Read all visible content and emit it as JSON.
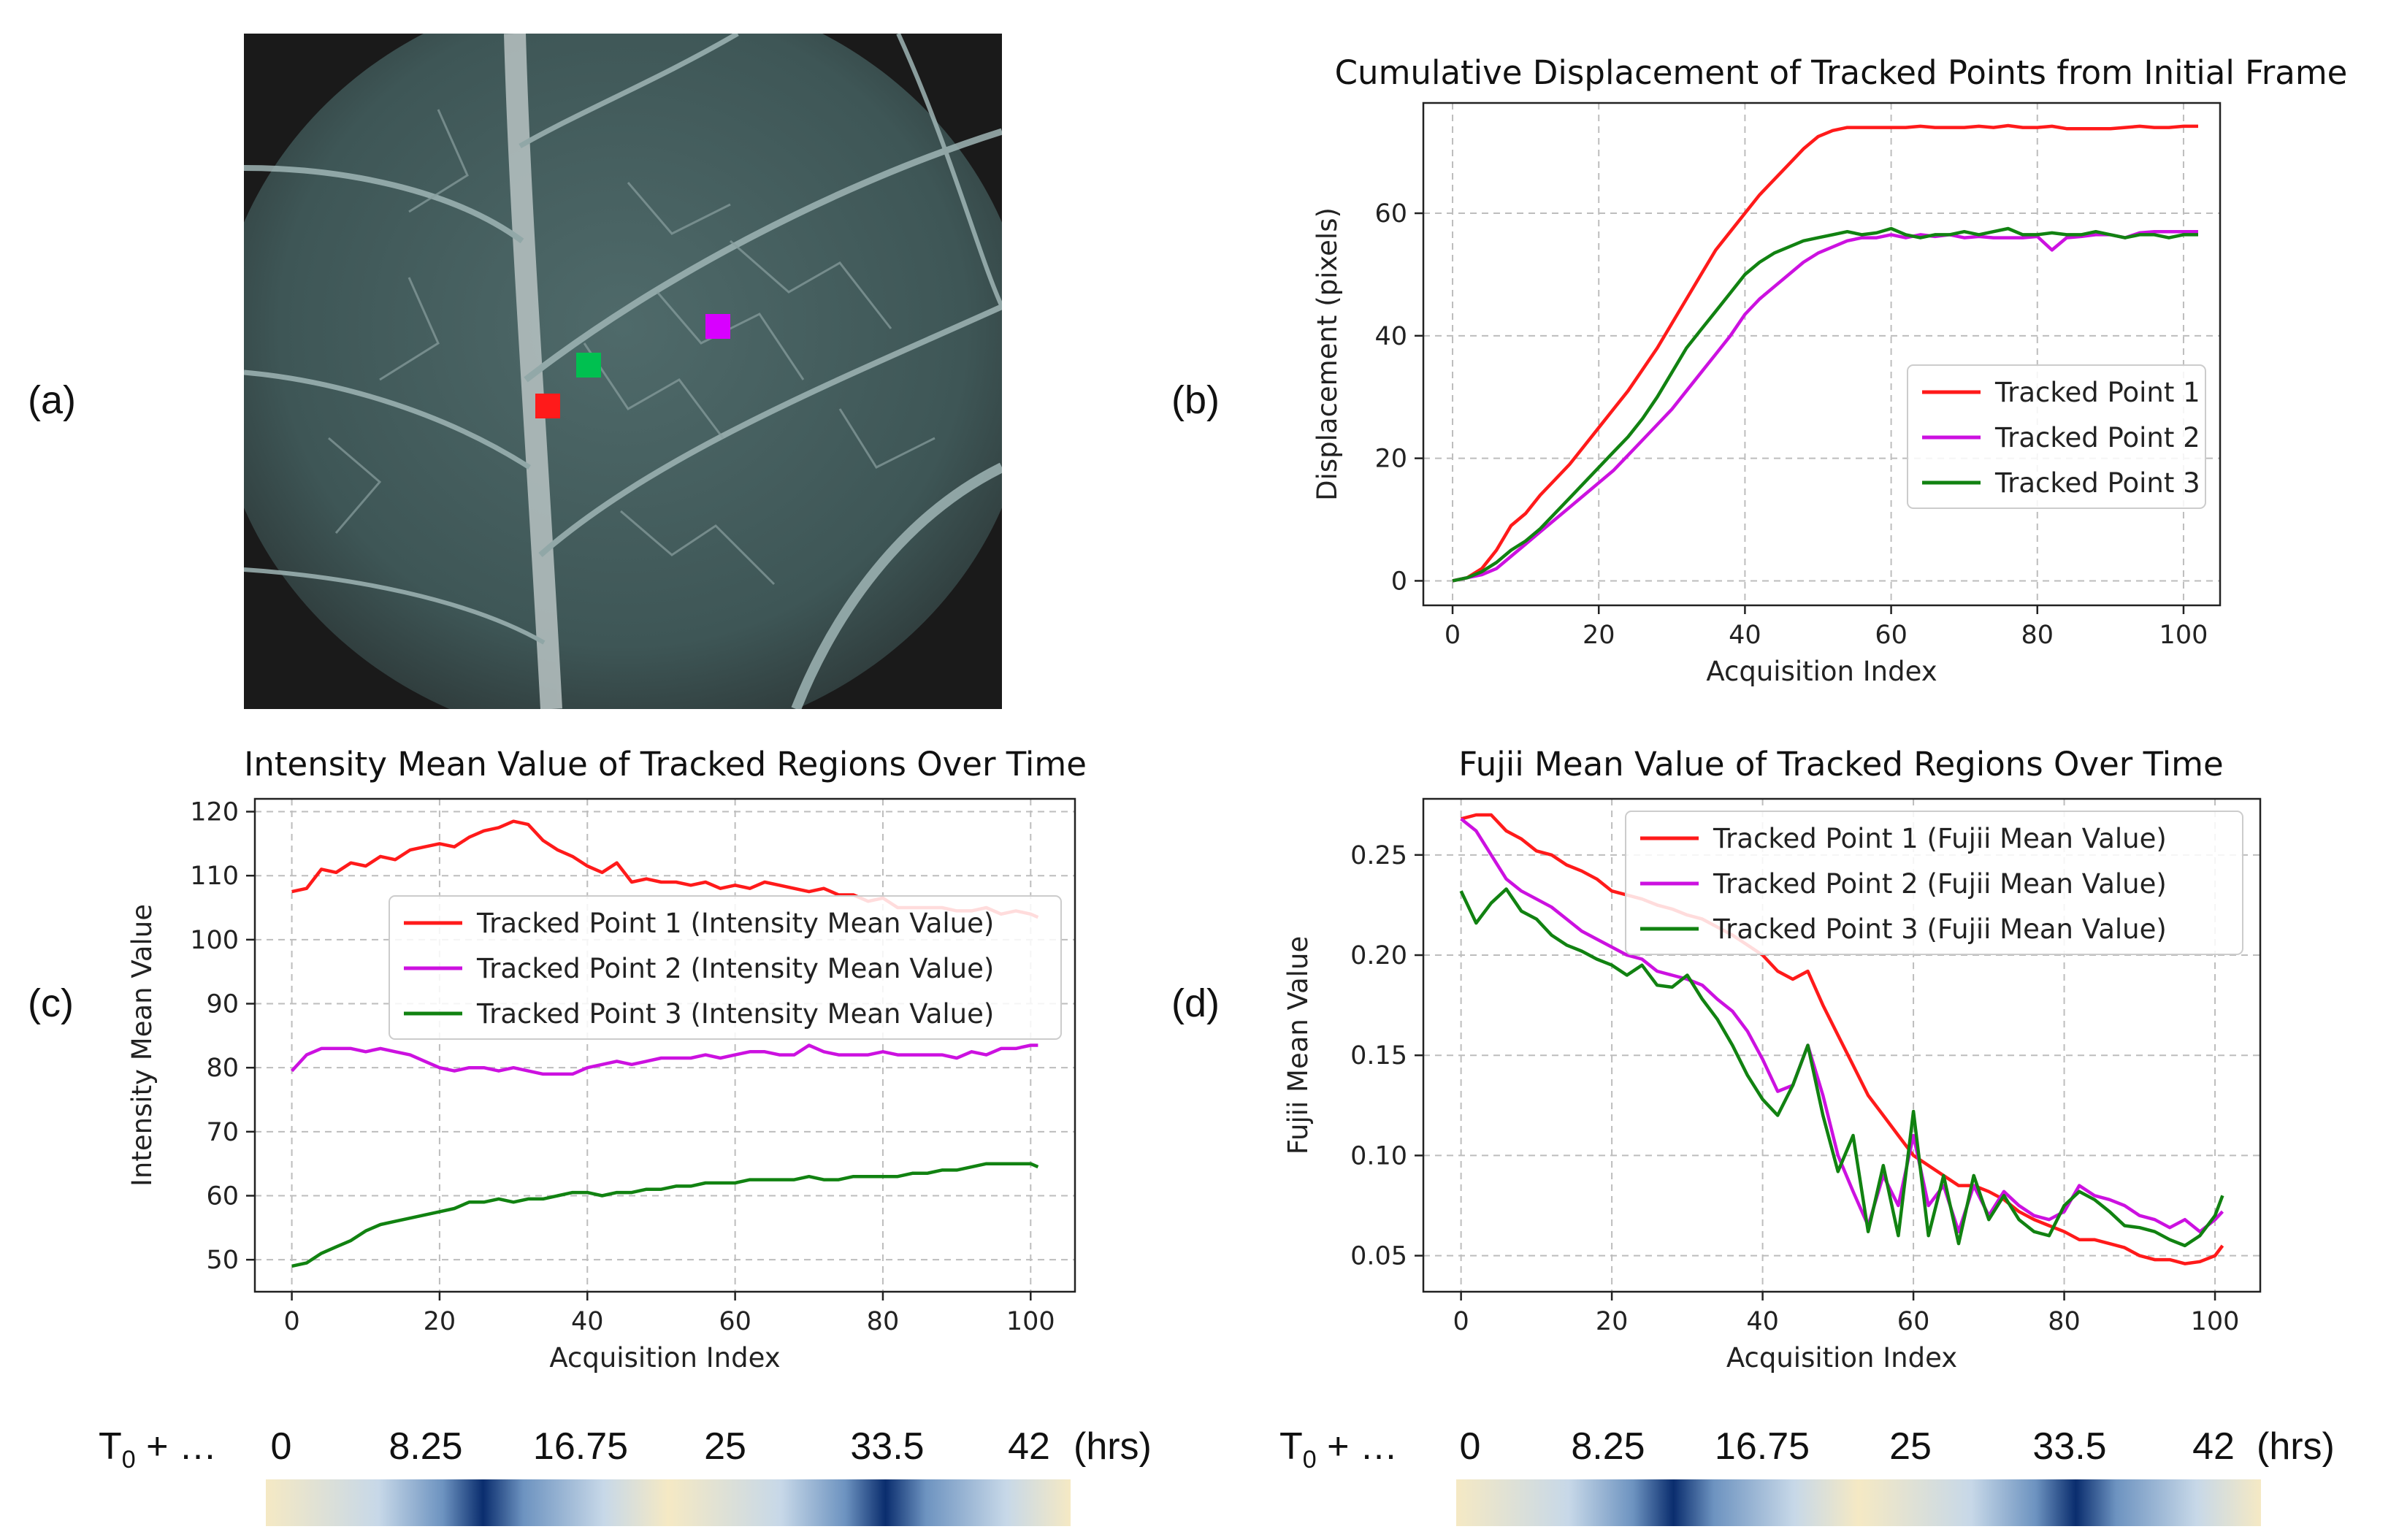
{
  "panel_labels": {
    "a": "(a)",
    "b": "(b)",
    "c": "(c)",
    "d": "(d)"
  },
  "colors": {
    "point1": "#ff1a1a",
    "point2": "#cc11e0",
    "point3": "#118211",
    "marker3": "#00c050"
  },
  "leaf_image": {
    "description_icon": "leaf-photo",
    "markers": [
      "red",
      "green",
      "magenta"
    ]
  },
  "chart_data": [
    {
      "id": "b",
      "type": "line",
      "title": "Cumulative Displacement of Tracked Points from Initial Frame",
      "xlabel": "Acquisition Index",
      "ylabel": "Displacement (pixels)",
      "xlim": [
        -4,
        105
      ],
      "ylim": [
        -4,
        78
      ],
      "xticks": [
        0,
        20,
        40,
        60,
        80,
        100
      ],
      "yticks": [
        0,
        20,
        40,
        60
      ],
      "legend_position": "center-right",
      "series": [
        {
          "name": "Tracked Point 1",
          "color": "#ff1a1a",
          "x": [
            0,
            2,
            4,
            6,
            8,
            10,
            12,
            14,
            16,
            18,
            20,
            22,
            24,
            26,
            28,
            30,
            32,
            34,
            36,
            38,
            40,
            42,
            44,
            46,
            48,
            50,
            52,
            54,
            56,
            58,
            60,
            62,
            64,
            66,
            68,
            70,
            72,
            74,
            76,
            78,
            80,
            82,
            84,
            86,
            88,
            90,
            92,
            94,
            96,
            98,
            100,
            102
          ],
          "y": [
            0,
            0.5,
            2,
            5,
            9,
            11,
            14,
            16.5,
            19,
            22,
            25,
            28,
            31,
            34.5,
            38,
            42,
            46,
            50,
            54,
            57,
            60,
            63,
            65.5,
            68,
            70.5,
            72.5,
            73.5,
            74,
            74,
            74,
            74,
            74,
            74.2,
            74,
            74,
            74,
            74.2,
            74,
            74.3,
            74,
            74,
            74.2,
            73.8,
            73.8,
            73.8,
            73.8,
            74,
            74.2,
            74,
            74,
            74.2,
            74.2
          ]
        },
        {
          "name": "Tracked Point 2",
          "color": "#cc11e0",
          "x": [
            0,
            2,
            4,
            6,
            8,
            10,
            12,
            14,
            16,
            18,
            20,
            22,
            24,
            26,
            28,
            30,
            32,
            34,
            36,
            38,
            40,
            42,
            44,
            46,
            48,
            50,
            52,
            54,
            56,
            58,
            60,
            62,
            64,
            66,
            68,
            70,
            72,
            74,
            76,
            78,
            80,
            82,
            84,
            86,
            88,
            90,
            92,
            94,
            96,
            98,
            100,
            102
          ],
          "y": [
            0,
            0.5,
            1,
            2,
            4,
            6,
            8,
            10,
            12,
            14,
            16,
            18,
            20.5,
            23,
            25.5,
            28,
            31,
            34,
            37,
            40,
            43.5,
            46,
            48,
            50,
            52,
            53.5,
            54.5,
            55.5,
            56,
            56,
            56.5,
            56,
            56.5,
            56.2,
            56.5,
            56,
            56.2,
            56,
            56,
            56,
            56.2,
            54,
            56,
            56.2,
            56.5,
            56.5,
            56,
            56.8,
            57,
            57,
            57,
            57
          ]
        },
        {
          "name": "Tracked Point 3",
          "color": "#118211",
          "x": [
            0,
            2,
            4,
            6,
            8,
            10,
            12,
            14,
            16,
            18,
            20,
            22,
            24,
            26,
            28,
            30,
            32,
            34,
            36,
            38,
            40,
            42,
            44,
            46,
            48,
            50,
            52,
            54,
            56,
            58,
            60,
            62,
            64,
            66,
            68,
            70,
            72,
            74,
            76,
            78,
            80,
            82,
            84,
            86,
            88,
            90,
            92,
            94,
            96,
            98,
            100,
            102
          ],
          "y": [
            0,
            0.5,
            1.5,
            3,
            5,
            6.5,
            8.5,
            11,
            13.5,
            16,
            18.5,
            21,
            23.5,
            26.5,
            30,
            34,
            38,
            41,
            44,
            47,
            50,
            52,
            53.5,
            54.5,
            55.5,
            56,
            56.5,
            57,
            56.5,
            56.8,
            57.5,
            56.5,
            56,
            56.5,
            56.5,
            57,
            56.5,
            57,
            57.5,
            56.5,
            56.5,
            56.8,
            56.5,
            56.5,
            57,
            56.5,
            56,
            56.5,
            56.5,
            56,
            56.5,
            56.5
          ]
        }
      ]
    },
    {
      "id": "c",
      "type": "line",
      "title": "Intensity Mean Value of Tracked Regions Over Time",
      "xlabel": "Acquisition Index",
      "ylabel": "Intensity Mean Value",
      "xlim": [
        -5,
        106
      ],
      "ylim": [
        45,
        122
      ],
      "xticks": [
        0,
        20,
        40,
        60,
        80,
        100
      ],
      "yticks": [
        50,
        60,
        70,
        80,
        90,
        100,
        110,
        120
      ],
      "legend_position": "center-right",
      "series": [
        {
          "name": "Tracked Point 1 (Intensity Mean Value)",
          "color": "#ff1a1a",
          "x": [
            0,
            2,
            4,
            6,
            8,
            10,
            12,
            14,
            16,
            18,
            20,
            22,
            24,
            26,
            28,
            30,
            32,
            34,
            36,
            38,
            40,
            42,
            44,
            46,
            48,
            50,
            52,
            54,
            56,
            58,
            60,
            62,
            64,
            66,
            68,
            70,
            72,
            74,
            76,
            78,
            80,
            82,
            84,
            86,
            88,
            90,
            92,
            94,
            96,
            98,
            100,
            101
          ],
          "y": [
            107.5,
            108,
            111,
            110.5,
            112,
            111.5,
            113,
            112.5,
            114,
            114.5,
            115,
            114.5,
            116,
            117,
            117.5,
            118.5,
            118,
            115.5,
            114,
            113,
            111.5,
            110.5,
            112,
            109,
            109.5,
            109,
            109,
            108.5,
            109,
            108,
            108.5,
            108,
            109,
            108.5,
            108,
            107.5,
            108,
            107,
            107,
            106,
            106.5,
            105,
            105,
            105,
            105,
            104.5,
            104.5,
            105,
            104,
            104.5,
            104,
            103.5
          ]
        },
        {
          "name": "Tracked Point 2 (Intensity Mean Value)",
          "color": "#cc11e0",
          "x": [
            0,
            2,
            4,
            6,
            8,
            10,
            12,
            14,
            16,
            18,
            20,
            22,
            24,
            26,
            28,
            30,
            32,
            34,
            36,
            38,
            40,
            42,
            44,
            46,
            48,
            50,
            52,
            54,
            56,
            58,
            60,
            62,
            64,
            66,
            68,
            70,
            72,
            74,
            76,
            78,
            80,
            82,
            84,
            86,
            88,
            90,
            92,
            94,
            96,
            98,
            100,
            101
          ],
          "y": [
            79.5,
            82,
            83,
            83,
            83,
            82.5,
            83,
            82.5,
            82,
            81,
            80,
            79.5,
            80,
            80,
            79.5,
            80,
            79.5,
            79,
            79,
            79,
            80,
            80.5,
            81,
            80.5,
            81,
            81.5,
            81.5,
            81.5,
            82,
            81.5,
            82,
            82.5,
            82.5,
            82,
            82,
            83.5,
            82.5,
            82,
            82,
            82,
            82.5,
            82,
            82,
            82,
            82,
            81.5,
            82.5,
            82,
            83,
            83,
            83.5,
            83.5
          ]
        },
        {
          "name": "Tracked Point 3 (Intensity Mean Value)",
          "color": "#118211",
          "x": [
            0,
            2,
            4,
            6,
            8,
            10,
            12,
            14,
            16,
            18,
            20,
            22,
            24,
            26,
            28,
            30,
            32,
            34,
            36,
            38,
            40,
            42,
            44,
            46,
            48,
            50,
            52,
            54,
            56,
            58,
            60,
            62,
            64,
            66,
            68,
            70,
            72,
            74,
            76,
            78,
            80,
            82,
            84,
            86,
            88,
            90,
            92,
            94,
            96,
            98,
            100,
            101
          ],
          "y": [
            49,
            49.5,
            51,
            52,
            53,
            54.5,
            55.5,
            56,
            56.5,
            57,
            57.5,
            58,
            59,
            59,
            59.5,
            59,
            59.5,
            59.5,
            60,
            60.5,
            60.5,
            60,
            60.5,
            60.5,
            61,
            61,
            61.5,
            61.5,
            62,
            62,
            62,
            62.5,
            62.5,
            62.5,
            62.5,
            63,
            62.5,
            62.5,
            63,
            63,
            63,
            63,
            63.5,
            63.5,
            64,
            64,
            64.5,
            65,
            65,
            65,
            65,
            64.5
          ]
        }
      ]
    },
    {
      "id": "d",
      "type": "line",
      "title": "Fujii Mean Value of Tracked Regions Over Time",
      "xlabel": "Acquisition Index",
      "ylabel": "Fujii Mean Value",
      "xlim": [
        -5,
        106
      ],
      "ylim": [
        0.032,
        0.278
      ],
      "xticks": [
        0,
        20,
        40,
        60,
        80,
        100
      ],
      "yticks": [
        0.05,
        0.1,
        0.15,
        0.2,
        0.25
      ],
      "legend_position": "top-right",
      "series": [
        {
          "name": "Tracked Point 1 (Fujii Mean Value)",
          "color": "#ff1a1a",
          "x": [
            0,
            2,
            4,
            6,
            8,
            10,
            12,
            14,
            16,
            18,
            20,
            22,
            24,
            26,
            28,
            30,
            32,
            34,
            36,
            38,
            40,
            42,
            44,
            46,
            48,
            50,
            52,
            54,
            56,
            58,
            60,
            62,
            64,
            66,
            68,
            70,
            72,
            74,
            76,
            78,
            80,
            82,
            84,
            86,
            88,
            90,
            92,
            94,
            96,
            98,
            100,
            101
          ],
          "y": [
            0.268,
            0.27,
            0.27,
            0.262,
            0.258,
            0.252,
            0.25,
            0.245,
            0.242,
            0.238,
            0.232,
            0.23,
            0.228,
            0.225,
            0.223,
            0.22,
            0.218,
            0.214,
            0.21,
            0.205,
            0.2,
            0.192,
            0.188,
            0.192,
            0.175,
            0.16,
            0.145,
            0.13,
            0.12,
            0.11,
            0.1,
            0.095,
            0.09,
            0.085,
            0.085,
            0.082,
            0.078,
            0.072,
            0.068,
            0.065,
            0.062,
            0.058,
            0.058,
            0.056,
            0.054,
            0.05,
            0.048,
            0.048,
            0.046,
            0.047,
            0.05,
            0.055
          ]
        },
        {
          "name": "Tracked Point 2 (Fujii Mean Value)",
          "color": "#cc11e0",
          "x": [
            0,
            2,
            4,
            6,
            8,
            10,
            12,
            14,
            16,
            18,
            20,
            22,
            24,
            26,
            28,
            30,
            32,
            34,
            36,
            38,
            40,
            42,
            44,
            46,
            48,
            50,
            52,
            54,
            56,
            58,
            60,
            62,
            64,
            66,
            68,
            70,
            72,
            74,
            76,
            78,
            80,
            82,
            84,
            86,
            88,
            90,
            92,
            94,
            96,
            98,
            100,
            101
          ],
          "y": [
            0.268,
            0.262,
            0.25,
            0.238,
            0.232,
            0.228,
            0.224,
            0.218,
            0.212,
            0.208,
            0.204,
            0.2,
            0.198,
            0.192,
            0.19,
            0.188,
            0.185,
            0.178,
            0.172,
            0.162,
            0.148,
            0.132,
            0.135,
            0.155,
            0.13,
            0.1,
            0.082,
            0.065,
            0.09,
            0.075,
            0.11,
            0.075,
            0.085,
            0.062,
            0.085,
            0.07,
            0.082,
            0.075,
            0.07,
            0.068,
            0.072,
            0.085,
            0.08,
            0.078,
            0.075,
            0.07,
            0.068,
            0.064,
            0.068,
            0.062,
            0.068,
            0.072
          ]
        },
        {
          "name": "Tracked Point 3 (Fujii Mean Value)",
          "color": "#118211",
          "x": [
            0,
            2,
            4,
            6,
            8,
            10,
            12,
            14,
            16,
            18,
            20,
            22,
            24,
            26,
            28,
            30,
            32,
            34,
            36,
            38,
            40,
            42,
            44,
            46,
            48,
            50,
            52,
            54,
            56,
            58,
            60,
            62,
            64,
            66,
            68,
            70,
            72,
            74,
            76,
            78,
            80,
            82,
            84,
            86,
            88,
            90,
            92,
            94,
            96,
            98,
            100,
            101
          ],
          "y": [
            0.232,
            0.216,
            0.226,
            0.233,
            0.222,
            0.218,
            0.21,
            0.205,
            0.202,
            0.198,
            0.195,
            0.19,
            0.195,
            0.185,
            0.184,
            0.19,
            0.178,
            0.168,
            0.155,
            0.14,
            0.128,
            0.12,
            0.135,
            0.155,
            0.12,
            0.092,
            0.11,
            0.062,
            0.095,
            0.06,
            0.122,
            0.06,
            0.09,
            0.056,
            0.09,
            0.068,
            0.08,
            0.068,
            0.062,
            0.06,
            0.075,
            0.082,
            0.078,
            0.072,
            0.065,
            0.064,
            0.062,
            0.058,
            0.055,
            0.06,
            0.07,
            0.08
          ]
        }
      ]
    }
  ],
  "timelines": [
    {
      "id": "left",
      "prefix": "T",
      "prefix_sub": "0",
      "prefix_suffix": " + …",
      "labels": [
        "0",
        "8.25",
        "16.75",
        "25",
        "33.5",
        "42"
      ],
      "unit": "(hrs)"
    },
    {
      "id": "right",
      "prefix": "T",
      "prefix_sub": "0",
      "prefix_suffix": " + …",
      "labels": [
        "0",
        "8.25",
        "16.75",
        "25",
        "33.5",
        "42"
      ],
      "unit": "(hrs)"
    }
  ],
  "day_night_bar": {
    "light_color": "#f5e9c4",
    "mid_color": "#a9c6e2",
    "dark_color": "#0a2d6e"
  }
}
